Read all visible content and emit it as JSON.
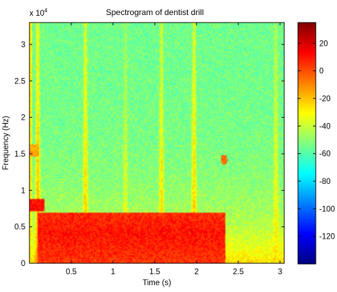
{
  "chart_data": {
    "type": "heatmap",
    "title": "Spectrogram of dentist drill",
    "xlabel": "Time (s)",
    "ylabel": "Frequency (Hz)",
    "y_exponent_label": "x 10",
    "y_exponent_power": "4",
    "xlim": [
      0.0,
      3.05
    ],
    "ylim": [
      0,
      33000
    ],
    "x_ticks": [
      0.5,
      1,
      1.5,
      2,
      2.5,
      3
    ],
    "x_tick_labels": [
      "0.5",
      "1",
      "1.5",
      "2",
      "2.5",
      "3"
    ],
    "y_ticks": [
      0,
      5000,
      10000,
      15000,
      20000,
      25000,
      30000
    ],
    "y_tick_labels": [
      "0",
      "0.5",
      "1",
      "1.5",
      "2",
      "2.5",
      "3"
    ],
    "colorbar": {
      "colormap": "jet",
      "range": [
        -140,
        35
      ],
      "ticks": [
        20,
        0,
        -20,
        -40,
        -60,
        -80,
        -100,
        -120
      ],
      "tick_labels": [
        "20",
        "0",
        "-20",
        "-40",
        "-60",
        "-80",
        "-100",
        "-120"
      ]
    },
    "features": {
      "background_level_db": -55,
      "low_band": {
        "t_start": 0.1,
        "t_end": 2.35,
        "f_max": 7000,
        "level_db": 10
      },
      "broadband_spikes": [
        {
          "t": 0.1,
          "level_db": -10
        },
        {
          "t": 0.67,
          "level_db": -15
        },
        {
          "t": 1.15,
          "level_db": -30
        },
        {
          "t": 1.58,
          "level_db": -20
        },
        {
          "t": 1.97,
          "level_db": -15
        },
        {
          "t": 2.95,
          "level_db": -25
        }
      ],
      "tonal_bands": [
        {
          "t_start": 0.0,
          "t_end": 0.18,
          "f": 8000,
          "level_db": 10
        },
        {
          "t_start": 0.0,
          "t_end": 0.12,
          "f": 15500,
          "level_db": -15
        }
      ],
      "hotspot": {
        "t": 2.33,
        "f": 14200,
        "level_db": -5
      }
    }
  }
}
